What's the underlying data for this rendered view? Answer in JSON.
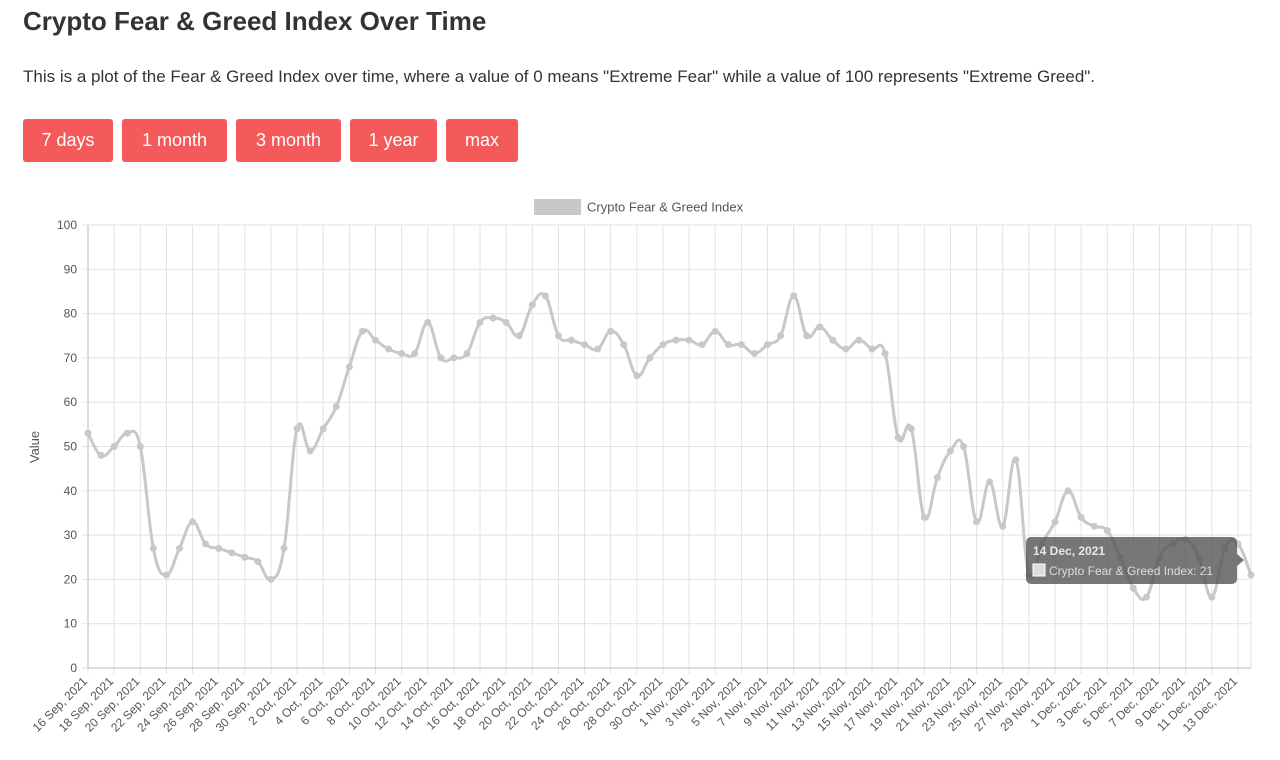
{
  "page": {
    "title": "Crypto Fear & Greed Index Over Time",
    "description": "This is a plot of the Fear & Greed Index over time, where a value of 0 means \"Extreme Fear\" while a value of 100 represents \"Extreme Greed\"."
  },
  "range_buttons": [
    {
      "label": "7 days"
    },
    {
      "label": "1 month"
    },
    {
      "label": "3 month"
    },
    {
      "label": "1 year"
    },
    {
      "label": "max"
    }
  ],
  "colors": {
    "button_bg": "#f55a5a",
    "button_text": "#ffffff",
    "line": "#c8c8c8",
    "grid": "#e2e2e2",
    "axis_text": "#555555",
    "tooltip_bg": "#555555"
  },
  "tooltip": {
    "title": "14 Dec, 2021",
    "body": "Crypto Fear & Greed Index: 21"
  },
  "chart_data": {
    "type": "line",
    "ylabel": "Value",
    "ylim": [
      0,
      100
    ],
    "yticks": [
      0,
      10,
      20,
      30,
      40,
      50,
      60,
      70,
      80,
      90,
      100
    ],
    "grid": true,
    "legend_position": "top-center",
    "x_tick_labels": [
      "16 Sep, 2021",
      "18 Sep, 2021",
      "20 Sep, 2021",
      "22 Sep, 2021",
      "24 Sep, 2021",
      "26 Sep, 2021",
      "28 Sep, 2021",
      "30 Sep, 2021",
      "2 Oct, 2021",
      "4 Oct, 2021",
      "6 Oct, 2021",
      "8 Oct, 2021",
      "10 Oct, 2021",
      "12 Oct, 2021",
      "14 Oct, 2021",
      "16 Oct, 2021",
      "18 Oct, 2021",
      "20 Oct, 2021",
      "22 Oct, 2021",
      "24 Oct, 2021",
      "26 Oct, 2021",
      "28 Oct, 2021",
      "30 Oct, 2021",
      "1 Nov, 2021",
      "3 Nov, 2021",
      "5 Nov, 2021",
      "7 Nov, 2021",
      "9 Nov, 2021",
      "11 Nov, 2021",
      "13 Nov, 2021",
      "15 Nov, 2021",
      "17 Nov, 2021",
      "19 Nov, 2021",
      "21 Nov, 2021",
      "23 Nov, 2021",
      "25 Nov, 2021",
      "27 Nov, 2021",
      "29 Nov, 2021",
      "1 Dec, 2021",
      "3 Dec, 2021",
      "5 Dec, 2021",
      "7 Dec, 2021",
      "9 Dec, 2021",
      "11 Dec, 2021",
      "13 Dec, 2021"
    ],
    "series": [
      {
        "name": "Crypto Fear & Greed Index",
        "start": "16 Sep, 2021",
        "end": "14 Dec, 2021",
        "values": [
          53,
          48,
          50,
          53,
          50,
          27,
          21,
          27,
          33,
          28,
          27,
          26,
          25,
          24,
          20,
          27,
          54,
          49,
          54,
          59,
          68,
          76,
          74,
          72,
          71,
          71,
          78,
          70,
          70,
          71,
          78,
          79,
          78,
          75,
          82,
          84,
          75,
          74,
          73,
          72,
          76,
          73,
          66,
          70,
          73,
          74,
          74,
          73,
          76,
          73,
          73,
          71,
          73,
          75,
          84,
          75,
          77,
          74,
          72,
          74,
          72,
          71,
          52,
          54,
          34,
          43,
          49,
          50,
          33,
          42,
          32,
          47,
          21,
          28,
          33,
          40,
          34,
          32,
          31,
          25,
          18,
          16,
          25,
          28,
          29,
          25,
          16,
          27,
          28,
          21
        ]
      }
    ]
  }
}
